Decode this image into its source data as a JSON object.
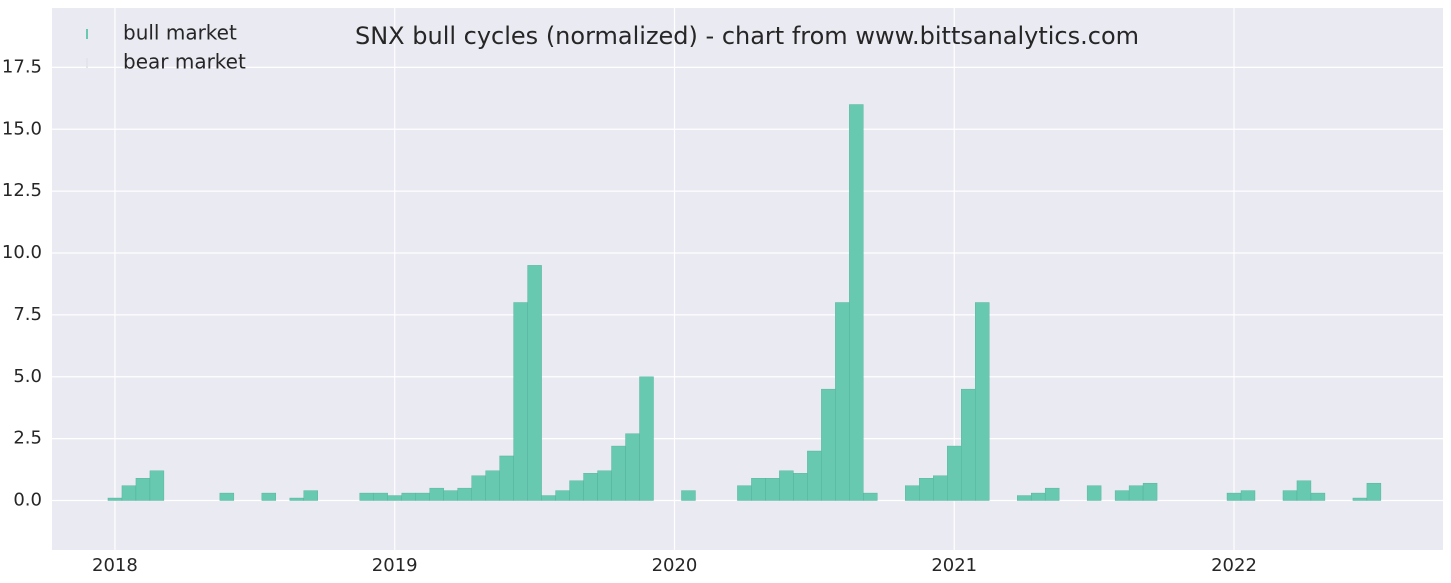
{
  "chart_data": {
    "type": "bar",
    "title": "SNX bull cycles (normalized)  - chart from www.bittsanalytics.com",
    "x": [
      2018.0,
      2018.05,
      2018.1,
      2018.15,
      2018.2,
      2018.25,
      2018.3,
      2018.35,
      2018.4,
      2018.45,
      2018.5,
      2018.55,
      2018.6,
      2018.65,
      2018.7,
      2018.75,
      2018.8,
      2018.85,
      2018.9,
      2018.95,
      2019.0,
      2019.05,
      2019.1,
      2019.15,
      2019.2,
      2019.25,
      2019.3,
      2019.35,
      2019.4,
      2019.45,
      2019.5,
      2019.55,
      2019.6,
      2019.65,
      2019.7,
      2019.75,
      2019.8,
      2019.85,
      2019.9,
      2019.95,
      2020.0,
      2020.05,
      2020.1,
      2020.15,
      2020.2,
      2020.25,
      2020.3,
      2020.35,
      2020.4,
      2020.45,
      2020.5,
      2020.55,
      2020.6,
      2020.65,
      2020.7,
      2020.75,
      2020.8,
      2020.85,
      2020.9,
      2020.95,
      2021.0,
      2021.05,
      2021.1,
      2021.15,
      2021.2,
      2021.25,
      2021.3,
      2021.35,
      2021.4,
      2021.45,
      2021.5,
      2021.55,
      2021.6,
      2021.65,
      2021.7,
      2021.75,
      2021.8,
      2021.85,
      2021.9,
      2021.95,
      2022.0,
      2022.05,
      2022.1,
      2022.15,
      2022.2,
      2022.25,
      2022.3,
      2022.35,
      2022.4,
      2022.45,
      2022.5,
      2022.55
    ],
    "series": [
      {
        "name": "bull market",
        "color": "#66c9b0",
        "values": [
          0.1,
          0.6,
          0.9,
          1.2,
          0,
          0,
          0,
          0,
          0.3,
          0,
          0,
          0.3,
          0,
          0.1,
          0.4,
          0,
          0,
          0,
          0.3,
          0.3,
          0.2,
          0.3,
          0.3,
          0.5,
          0.4,
          0.5,
          1.0,
          1.2,
          1.8,
          8.0,
          9.5,
          0.2,
          0.4,
          0.8,
          1.1,
          1.2,
          2.2,
          2.7,
          5.0,
          0,
          0,
          0.4,
          0,
          0,
          0,
          0.6,
          0.9,
          0.9,
          1.2,
          1.1,
          2.0,
          4.5,
          8.0,
          16.0,
          0.3,
          0,
          0,
          0.6,
          0.9,
          1.0,
          2.2,
          4.5,
          8.0,
          0,
          0,
          0.2,
          0.3,
          0.5,
          0,
          0,
          0.6,
          0,
          0.4,
          0.6,
          0.7,
          0,
          0,
          0,
          0,
          0,
          0.3,
          0.4,
          0,
          0,
          0.4,
          0.8,
          0.3,
          0,
          0,
          0.1,
          0.7,
          0
        ]
      },
      {
        "name": "bear market",
        "color": "#e4e4ec",
        "values": [
          null,
          null,
          null,
          null,
          0,
          0,
          0,
          0,
          null,
          0,
          0,
          null,
          0,
          null,
          null,
          0,
          0,
          0,
          null,
          null,
          null,
          null,
          null,
          null,
          null,
          null,
          null,
          null,
          null,
          null,
          null,
          null,
          null,
          null,
          null,
          null,
          null,
          null,
          null,
          0,
          0,
          null,
          0,
          0,
          0,
          null,
          null,
          null,
          null,
          null,
          null,
          null,
          null,
          null,
          null,
          0,
          0,
          null,
          null,
          null,
          null,
          null,
          null,
          0,
          0,
          null,
          null,
          null,
          0,
          0,
          null,
          0,
          null,
          null,
          null,
          0,
          0,
          0,
          0,
          0,
          null,
          null,
          0,
          0,
          null,
          null,
          null,
          0,
          0,
          null,
          null,
          0
        ]
      }
    ],
    "xlim": [
      2017.775,
      2022.747
    ],
    "xticks": [
      2018,
      2019,
      2020,
      2021,
      2022
    ],
    "ylim": [
      -2,
      19.9
    ],
    "yticks": [
      {
        "value": 0,
        "label": "0.0"
      },
      {
        "value": 2.5,
        "label": "2.5"
      },
      {
        "value": 5,
        "label": "5.0"
      },
      {
        "value": 7.5,
        "label": "7.5"
      },
      {
        "value": 10,
        "label": "10.0"
      },
      {
        "value": 12.5,
        "label": "12.5"
      },
      {
        "value": 15,
        "label": "15.0"
      },
      {
        "value": 17.5,
        "label": "17.5"
      }
    ],
    "grid": true,
    "legend": "upper left"
  }
}
